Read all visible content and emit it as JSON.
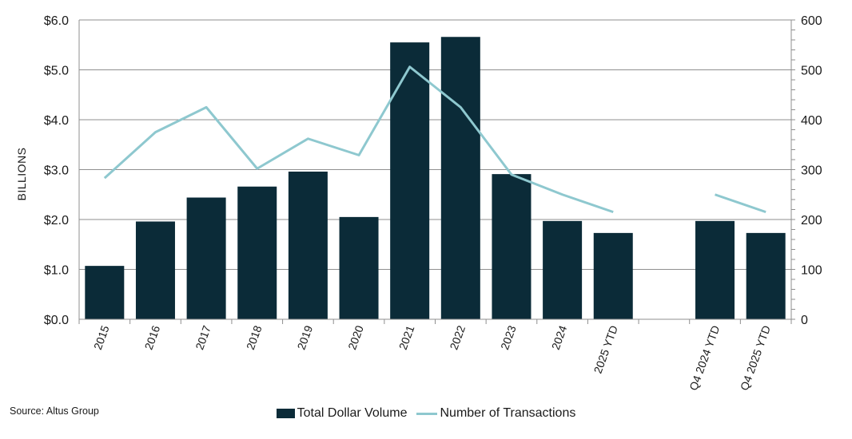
{
  "colors": {
    "bar": "#0b2b38",
    "line": "#8ec8cf",
    "grid": "#8f8f8f",
    "axis": "#8f8f8f"
  },
  "source": "Source: Altus Group",
  "chart_data": {
    "type": "bar+line",
    "categories": [
      "2015",
      "2016",
      "2017",
      "2018",
      "2019",
      "2020",
      "2021",
      "2022",
      "2023",
      "2024",
      "2025 YTD",
      "",
      "Q4 2024 YTD",
      "Q4 2025 YTD"
    ],
    "series": [
      {
        "name": "Total Dollar Volume",
        "type": "bar",
        "axis": "left",
        "values": [
          1.07,
          1.96,
          2.44,
          2.66,
          2.96,
          2.05,
          5.55,
          5.66,
          2.91,
          1.97,
          1.73,
          null,
          1.97,
          1.73
        ]
      },
      {
        "name": "Number of Transactions",
        "type": "line",
        "axis": "right",
        "values": [
          283,
          375,
          425,
          302,
          362,
          329,
          506,
          425,
          290,
          250,
          215,
          null,
          250,
          215
        ]
      }
    ],
    "left_axis": {
      "label": "BILLIONS",
      "min": 0,
      "max": 6,
      "ticks": [
        "$0.0",
        "$1.0",
        "$2.0",
        "$3.0",
        "$4.0",
        "$5.0",
        "$6.0"
      ]
    },
    "right_axis": {
      "min": 0,
      "max": 600,
      "ticks": [
        "0",
        "100",
        "200",
        "300",
        "400",
        "500",
        "600"
      ]
    },
    "legend": [
      "Total Dollar Volume",
      "Number of Transactions"
    ]
  }
}
